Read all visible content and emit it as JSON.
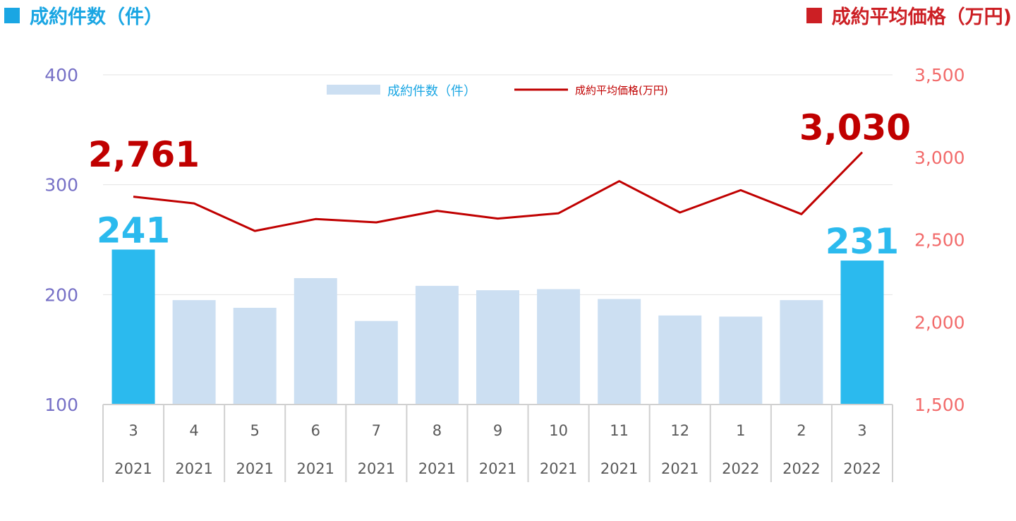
{
  "titles": {
    "left": "成約件数（件）",
    "right": "成約平均価格（万円)"
  },
  "colors": {
    "left_title": "#1aa6e3",
    "right_title": "#cc1f24",
    "bar_normal": "#ccdff2",
    "bar_highlight": "#2bbaee",
    "line": "#c00000",
    "left_axis_text": "#7670c6",
    "right_axis_text": "#f26b6b",
    "grid": "#e3e3e3"
  },
  "legend": {
    "bars": "成約件数（件）",
    "line": "成約平均価格(万円)"
  },
  "chart_data": {
    "type": "bar",
    "categories": [
      [
        "3",
        "2021"
      ],
      [
        "4",
        "2021"
      ],
      [
        "5",
        "2021"
      ],
      [
        "6",
        "2021"
      ],
      [
        "7",
        "2021"
      ],
      [
        "8",
        "2021"
      ],
      [
        "9",
        "2021"
      ],
      [
        "10",
        "2021"
      ],
      [
        "11",
        "2021"
      ],
      [
        "12",
        "2021"
      ],
      [
        "1",
        "2022"
      ],
      [
        "2",
        "2022"
      ],
      [
        "3",
        "2022"
      ]
    ],
    "series": [
      {
        "name": "成約件数（件）",
        "type": "bar",
        "axis": "left",
        "values": [
          241,
          195,
          188,
          215,
          176,
          208,
          204,
          205,
          196,
          181,
          180,
          195,
          231
        ],
        "highlight": [
          0,
          12
        ]
      },
      {
        "name": "成約平均価格(万円)",
        "type": "line",
        "axis": "right",
        "values": [
          2761,
          2720,
          2553,
          2625,
          2605,
          2675,
          2628,
          2660,
          2855,
          2665,
          2800,
          2655,
          3030
        ]
      }
    ],
    "y_left": {
      "min": 100,
      "max": 400,
      "ticks": [
        "100",
        "200",
        "300",
        "400"
      ]
    },
    "y_right": {
      "min": 1500,
      "max": 3500,
      "ticks": [
        "1,500",
        "2,000",
        "2,500",
        "3,000",
        "3,500"
      ]
    },
    "callouts": {
      "bar_first": "241",
      "bar_last": "231",
      "line_first": "2,761",
      "line_last": "3,030"
    },
    "grid": "horizontal",
    "legend_position": "top-center"
  }
}
